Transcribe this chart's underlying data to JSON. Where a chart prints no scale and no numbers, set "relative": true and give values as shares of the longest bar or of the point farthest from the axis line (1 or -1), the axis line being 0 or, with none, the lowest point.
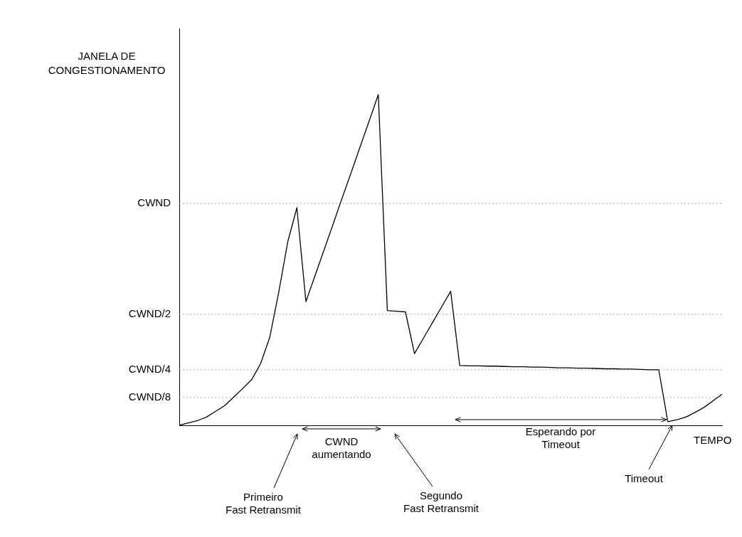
{
  "chart_data": {
    "type": "line",
    "relative": true,
    "xlabel": "TEMPO",
    "ylabel": "JANELA DE\nCONGESTIONAMENTO",
    "categories": [
      null,
      null,
      null,
      null,
      null,
      null,
      null,
      null,
      null,
      null,
      null,
      null,
      null,
      null,
      null,
      null,
      null,
      null,
      null,
      null,
      null,
      null,
      null,
      null,
      null,
      null,
      null,
      null,
      null,
      null,
      null,
      null,
      null,
      null,
      null,
      null,
      null,
      null,
      null,
      null,
      null,
      null,
      null,
      null,
      null,
      null,
      null,
      null,
      null,
      null,
      null,
      null,
      null,
      null,
      null,
      null,
      null,
      null,
      null,
      null,
      null
    ],
    "series": [
      {
        "color": "#000000",
        "values": [
          0,
          0.007,
          0.014,
          0.025,
          0.042,
          0.059,
          0.085,
          0.111,
          0.138,
          0.187,
          0.266,
          0.403,
          0.556,
          0.658,
          0.374,
          0.452,
          0.53,
          0.608,
          0.687,
          0.764,
          0.843,
          0.921,
          1,
          0.347,
          0.345,
          0.343,
          0.217,
          0.264,
          0.311,
          0.358,
          0.405,
          0.181,
          0.18,
          0.18,
          0.179,
          0.179,
          0.178,
          0.177,
          0.177,
          0.176,
          0.176,
          0.175,
          0.174,
          0.174,
          0.173,
          0.173,
          0.172,
          0.171,
          0.171,
          0.17,
          0.17,
          0.169,
          0.168,
          0.168,
          0.011,
          0.017,
          0.025,
          0.039,
          0.054,
          0.074,
          0.094
        ]
      }
    ],
    "ref_lines": [
      {
        "axis": "y",
        "value": 0.084,
        "label": "CWND/8",
        "line_style": "dotted",
        "color": "#aaaaaa"
      },
      {
        "axis": "y",
        "value": 0.168,
        "label": "CWND/4",
        "line_style": "dotted",
        "color": "#aaaaaa"
      },
      {
        "axis": "y",
        "value": 0.336,
        "label": "CWND/2",
        "line_style": "dotted",
        "color": "#aaaaaa"
      },
      {
        "axis": "y",
        "value": 0.671,
        "label": "CWND",
        "line_style": "dotted",
        "color": "#aaaaaa"
      }
    ],
    "marker": "none",
    "line_style": "solid",
    "legend": false,
    "annotations": [
      "CWND\naumentando",
      "Esperando por\nTimeout",
      "Primeiro\nFast Retransmit",
      "Segundo\nFast Retransmit",
      "Timeout"
    ]
  }
}
